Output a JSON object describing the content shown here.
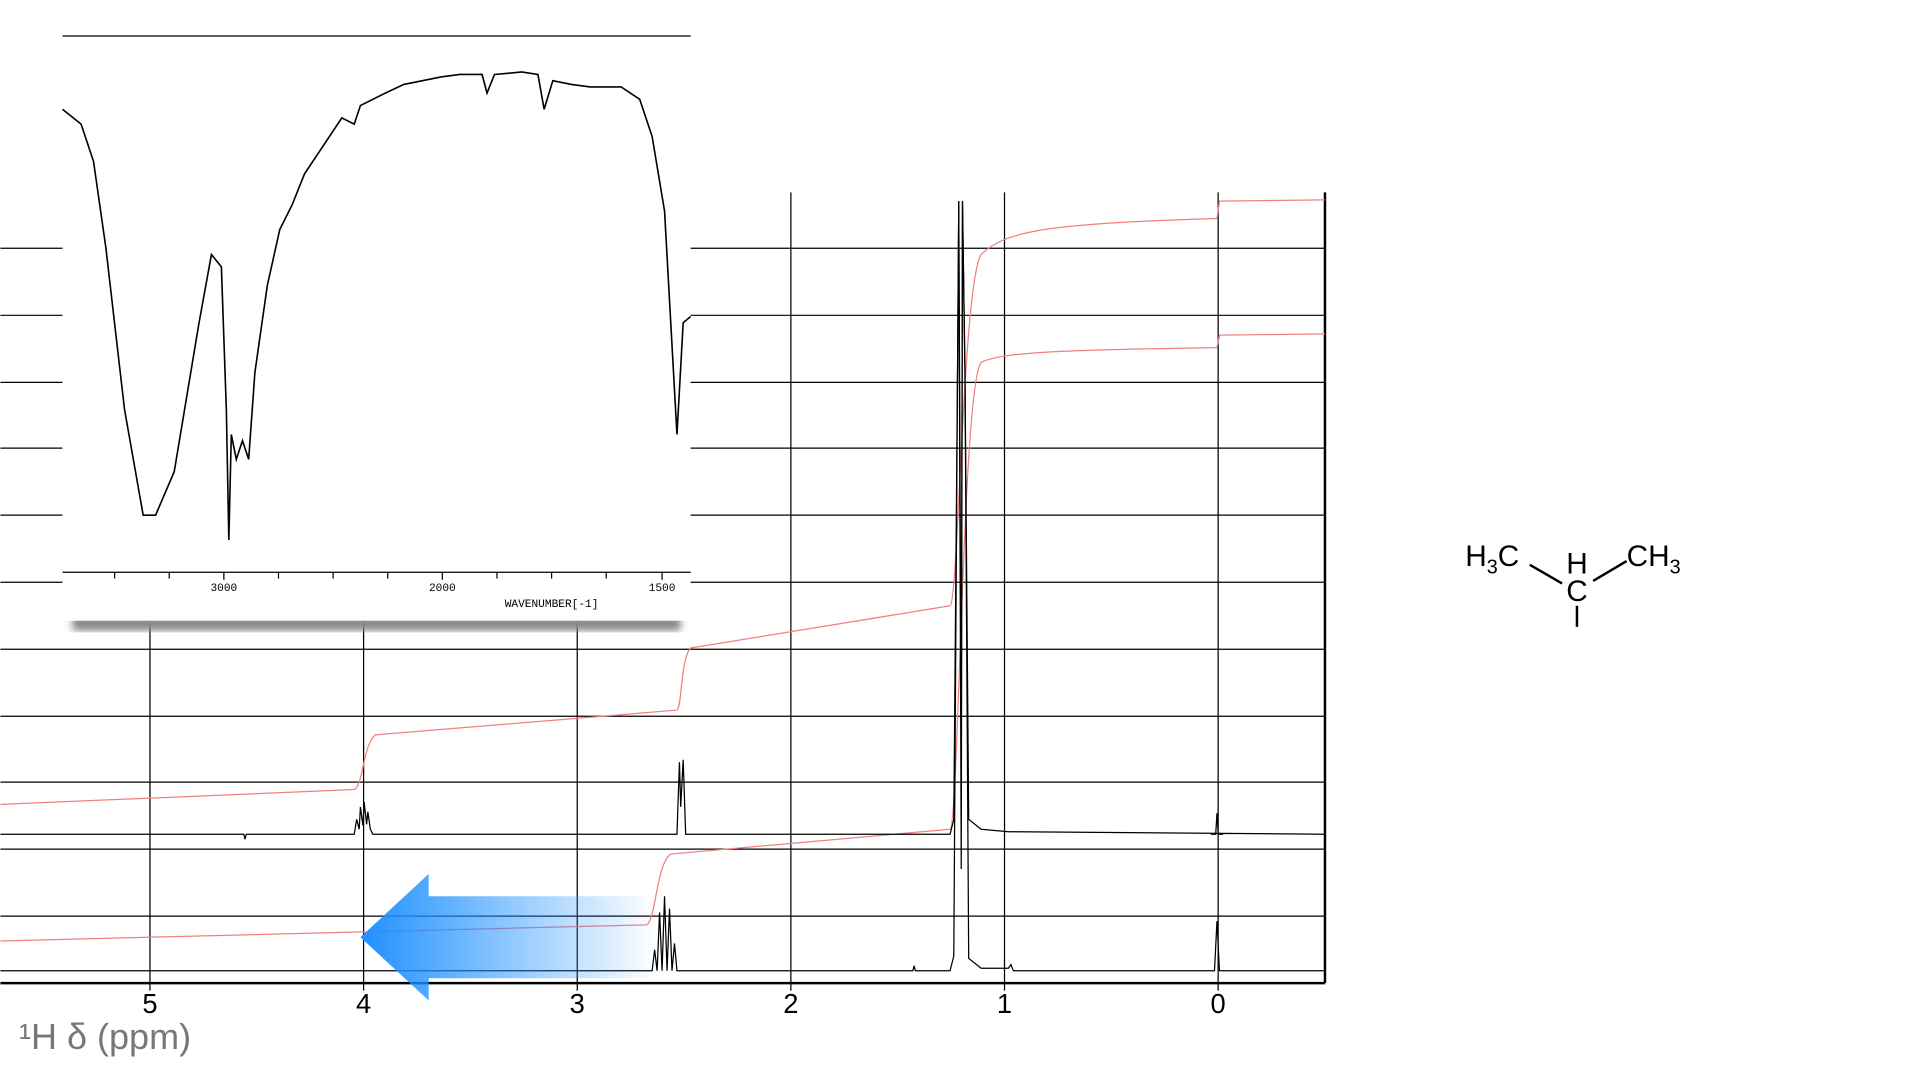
{
  "nmr": {
    "xlim": [
      5.7,
      -0.5
    ],
    "xticks": [
      5,
      4,
      3,
      2,
      1,
      0
    ],
    "xlabel": "¹H δ (ppm)"
  },
  "ir": {
    "xticks": [
      3000,
      2000,
      1500
    ],
    "xlabel": "WAVENUMBER[-1]"
  },
  "molecule": {
    "left": [
      "H",
      "3",
      "C"
    ],
    "top": "H",
    "right": [
      "CH",
      "3"
    ],
    "center": "C"
  }
}
